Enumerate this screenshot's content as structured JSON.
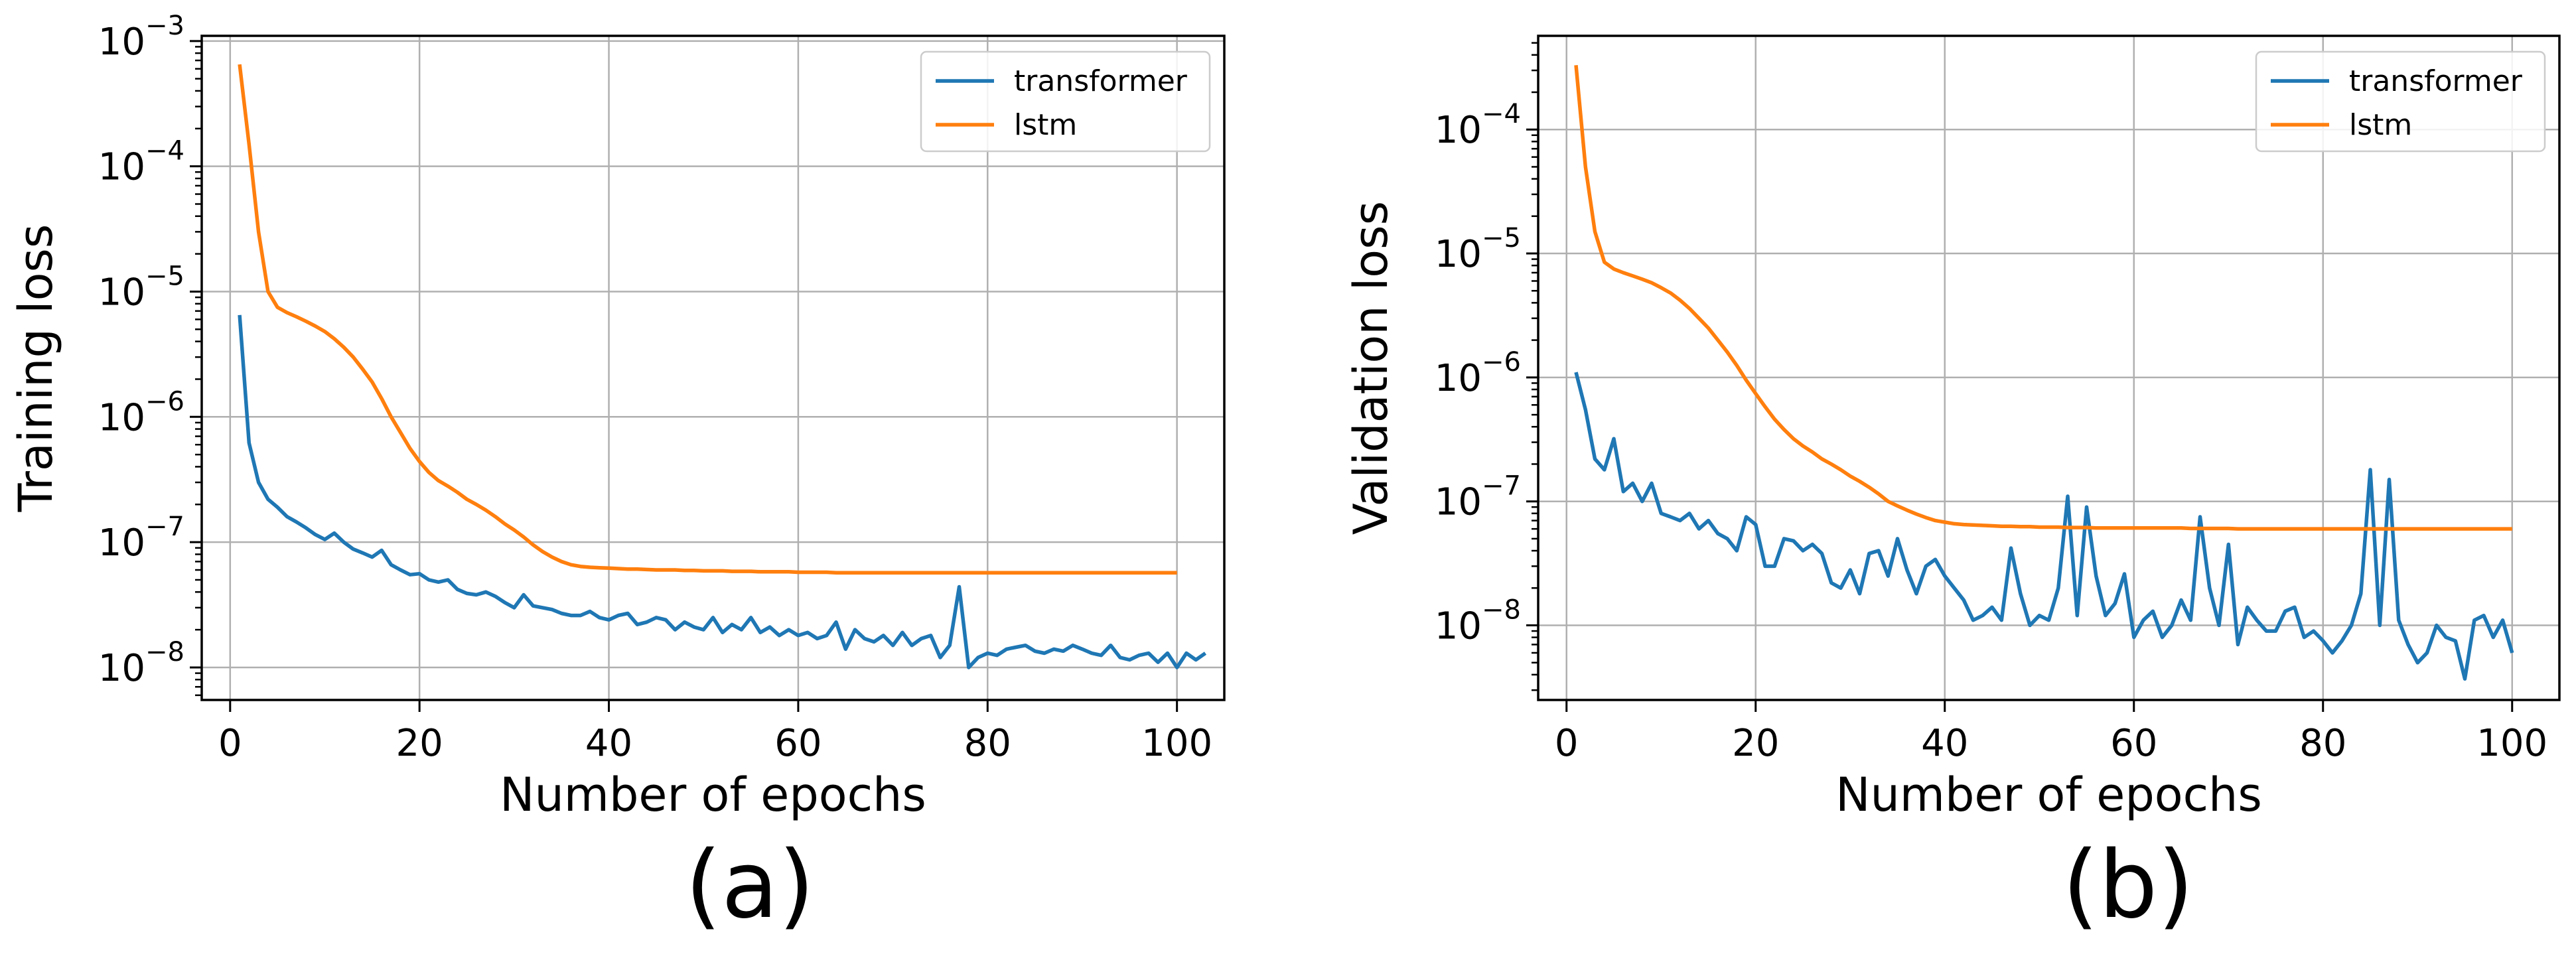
{
  "chart_data": [
    {
      "type": "line",
      "panel_label": "(a)",
      "xlabel": "Number of epochs",
      "ylabel": "Training loss",
      "xlim": [
        -3,
        105
      ],
      "xticks": [
        0,
        20,
        40,
        60,
        80,
        100
      ],
      "yscale": "log",
      "ylim": [
        5.5e-09,
        0.0011
      ],
      "yticks": [
        {
          "value": 1e-08,
          "base": "10",
          "exp": "−8"
        },
        {
          "value": 1e-07,
          "base": "10",
          "exp": "−7"
        },
        {
          "value": 1e-06,
          "base": "10",
          "exp": "−6"
        },
        {
          "value": 1e-05,
          "base": "10",
          "exp": "−5"
        },
        {
          "value": 0.0001,
          "base": "10",
          "exp": "−4"
        },
        {
          "value": 0.001,
          "base": "10",
          "exp": "−3"
        }
      ],
      "grid": true,
      "legend_position": "top-right",
      "series": [
        {
          "name": "transformer",
          "color": "#1f77b4",
          "values": [
            6.5e-06,
            6.2e-07,
            3e-07,
            2.2e-07,
            1.9e-07,
            1.6e-07,
            1.45e-07,
            1.3e-07,
            1.15e-07,
            1.05e-07,
            1.18e-07,
            1e-07,
            8.8e-08,
            8.2e-08,
            7.6e-08,
            8.6e-08,
            6.6e-08,
            6e-08,
            5.5e-08,
            5.6e-08,
            5e-08,
            4.8e-08,
            5e-08,
            4.2e-08,
            3.9e-08,
            3.8e-08,
            4e-08,
            3.7e-08,
            3.3e-08,
            3e-08,
            3.8e-08,
            3.1e-08,
            3e-08,
            2.9e-08,
            2.7e-08,
            2.6e-08,
            2.6e-08,
            2.8e-08,
            2.5e-08,
            2.4e-08,
            2.6e-08,
            2.7e-08,
            2.2e-08,
            2.3e-08,
            2.5e-08,
            2.4e-08,
            2e-08,
            2.3e-08,
            2.1e-08,
            2e-08,
            2.5e-08,
            1.9e-08,
            2.2e-08,
            2e-08,
            2.5e-08,
            1.9e-08,
            2.1e-08,
            1.8e-08,
            2e-08,
            1.8e-08,
            1.9e-08,
            1.7e-08,
            1.8e-08,
            2.3e-08,
            1.4e-08,
            2e-08,
            1.7e-08,
            1.6e-08,
            1.8e-08,
            1.5e-08,
            1.9e-08,
            1.5e-08,
            1.7e-08,
            1.8e-08,
            1.2e-08,
            1.5e-08,
            4.4e-08,
            1e-08,
            1.2e-08,
            1.3e-08,
            1.25e-08,
            1.4e-08,
            1.45e-08,
            1.5e-08,
            1.35e-08,
            1.3e-08,
            1.4e-08,
            1.35e-08,
            1.5e-08,
            1.4e-08,
            1.3e-08,
            1.25e-08,
            1.5e-08,
            1.2e-08,
            1.15e-08,
            1.25e-08,
            1.3e-08,
            1.1e-08,
            1.3e-08,
            1e-08,
            1.3e-08,
            1.15e-08,
            1.3e-08
          ]
        },
        {
          "name": "lstm",
          "color": "#ff7f0e",
          "values": [
            0.00065,
            0.00015,
            3e-05,
            1e-05,
            7.5e-06,
            6.8e-06,
            6.3e-06,
            5.8e-06,
            5.3e-06,
            4.8e-06,
            4.2e-06,
            3.6e-06,
            3e-06,
            2.4e-06,
            1.9e-06,
            1.4e-06,
            1e-06,
            7.5e-07,
            5.6e-07,
            4.4e-07,
            3.6e-07,
            3.1e-07,
            2.8e-07,
            2.5e-07,
            2.2e-07,
            2e-07,
            1.8e-07,
            1.6e-07,
            1.4e-07,
            1.25e-07,
            1.1e-07,
            9.5e-08,
            8.4e-08,
            7.6e-08,
            7e-08,
            6.6e-08,
            6.4e-08,
            6.3e-08,
            6.25e-08,
            6.2e-08,
            6.15e-08,
            6.1e-08,
            6.1e-08,
            6.05e-08,
            6e-08,
            6e-08,
            6e-08,
            5.95e-08,
            5.95e-08,
            5.9e-08,
            5.9e-08,
            5.9e-08,
            5.85e-08,
            5.85e-08,
            5.85e-08,
            5.8e-08,
            5.8e-08,
            5.8e-08,
            5.8e-08,
            5.75e-08,
            5.75e-08,
            5.75e-08,
            5.75e-08,
            5.7e-08,
            5.7e-08,
            5.7e-08,
            5.7e-08,
            5.7e-08,
            5.7e-08,
            5.7e-08,
            5.7e-08,
            5.7e-08,
            5.7e-08,
            5.7e-08,
            5.7e-08,
            5.7e-08,
            5.7e-08,
            5.7e-08,
            5.7e-08,
            5.7e-08,
            5.7e-08,
            5.7e-08,
            5.7e-08,
            5.7e-08,
            5.7e-08,
            5.7e-08,
            5.7e-08,
            5.7e-08,
            5.7e-08,
            5.7e-08,
            5.7e-08,
            5.7e-08,
            5.7e-08,
            5.7e-08,
            5.7e-08,
            5.7e-08,
            5.7e-08,
            5.7e-08,
            5.7e-08,
            5.7e-08
          ]
        }
      ]
    },
    {
      "type": "line",
      "panel_label": "(b)",
      "xlabel": "Number of epochs",
      "ylabel": "Validation loss",
      "xlim": [
        -3,
        105
      ],
      "xticks": [
        0,
        20,
        40,
        60,
        80,
        100
      ],
      "yscale": "log",
      "ylim": [
        2.5e-09,
        0.00057
      ],
      "yticks": [
        {
          "value": 1e-08,
          "base": "10",
          "exp": "−8"
        },
        {
          "value": 1e-07,
          "base": "10",
          "exp": "−7"
        },
        {
          "value": 1e-06,
          "base": "10",
          "exp": "−6"
        },
        {
          "value": 1e-05,
          "base": "10",
          "exp": "−5"
        },
        {
          "value": 0.0001,
          "base": "10",
          "exp": "−4"
        }
      ],
      "grid": true,
      "legend_position": "top-right",
      "series": [
        {
          "name": "transformer",
          "color": "#1f77b4",
          "values": [
            1.1e-06,
            5.5e-07,
            2.2e-07,
            1.8e-07,
            3.2e-07,
            1.2e-07,
            1.4e-07,
            1e-07,
            1.4e-07,
            8e-08,
            7.5e-08,
            7e-08,
            8e-08,
            6e-08,
            7e-08,
            5.5e-08,
            5e-08,
            4e-08,
            7.5e-08,
            6.5e-08,
            3e-08,
            3e-08,
            5e-08,
            4.8e-08,
            4e-08,
            4.5e-08,
            3.8e-08,
            2.2e-08,
            2e-08,
            2.8e-08,
            1.8e-08,
            3.8e-08,
            4e-08,
            2.5e-08,
            5e-08,
            2.8e-08,
            1.8e-08,
            3e-08,
            3.4e-08,
            2.5e-08,
            2e-08,
            1.6e-08,
            1.1e-08,
            1.2e-08,
            1.4e-08,
            1.1e-08,
            4.2e-08,
            1.8e-08,
            1e-08,
            1.2e-08,
            1.1e-08,
            2e-08,
            1.1e-07,
            1.2e-08,
            9e-08,
            2.5e-08,
            1.2e-08,
            1.5e-08,
            2.6e-08,
            8e-09,
            1.1e-08,
            1.3e-08,
            8e-09,
            1e-08,
            1.6e-08,
            1.1e-08,
            7.5e-08,
            2e-08,
            1e-08,
            4.5e-08,
            7e-09,
            1.4e-08,
            1.1e-08,
            9e-09,
            9e-09,
            1.3e-08,
            1.4e-08,
            8e-09,
            9e-09,
            7.5e-09,
            6e-09,
            7.5e-09,
            1e-08,
            1.8e-08,
            1.8e-07,
            1e-08,
            1.5e-07,
            1.1e-08,
            7e-09,
            5e-09,
            6e-09,
            1e-08,
            8e-09,
            7.5e-09,
            3.7e-09,
            1.1e-08,
            1.2e-08,
            8e-09,
            1.1e-08,
            6e-09
          ]
        },
        {
          "name": "lstm",
          "color": "#ff7f0e",
          "values": [
            0.00033,
            5e-05,
            1.5e-05,
            8.5e-06,
            7.5e-06,
            7e-06,
            6.6e-06,
            6.2e-06,
            5.8e-06,
            5.3e-06,
            4.8e-06,
            4.2e-06,
            3.6e-06,
            3e-06,
            2.5e-06,
            2e-06,
            1.6e-06,
            1.25e-06,
            9.5e-07,
            7.4e-07,
            5.8e-07,
            4.6e-07,
            3.8e-07,
            3.2e-07,
            2.8e-07,
            2.5e-07,
            2.2e-07,
            2e-07,
            1.8e-07,
            1.6e-07,
            1.45e-07,
            1.3e-07,
            1.15e-07,
            1e-07,
            9.2e-08,
            8.5e-08,
            7.9e-08,
            7.4e-08,
            7e-08,
            6.8e-08,
            6.6e-08,
            6.5e-08,
            6.45e-08,
            6.4e-08,
            6.35e-08,
            6.3e-08,
            6.3e-08,
            6.25e-08,
            6.25e-08,
            6.2e-08,
            6.2e-08,
            6.2e-08,
            6.15e-08,
            6.15e-08,
            6.15e-08,
            6.1e-08,
            6.1e-08,
            6.1e-08,
            6.1e-08,
            6.1e-08,
            6.1e-08,
            6.1e-08,
            6.1e-08,
            6.1e-08,
            6.1e-08,
            6.05e-08,
            6.05e-08,
            6.05e-08,
            6.05e-08,
            6.05e-08,
            6e-08,
            6e-08,
            6e-08,
            6e-08,
            6e-08,
            6e-08,
            6e-08,
            6e-08,
            6e-08,
            6e-08,
            6e-08,
            6e-08,
            6e-08,
            6e-08,
            6e-08,
            6e-08,
            6e-08,
            6e-08,
            6e-08,
            6e-08,
            6e-08,
            6e-08,
            6e-08,
            6e-08,
            6e-08,
            6e-08,
            6e-08,
            6e-08,
            6e-08,
            6e-08
          ]
        }
      ]
    }
  ]
}
